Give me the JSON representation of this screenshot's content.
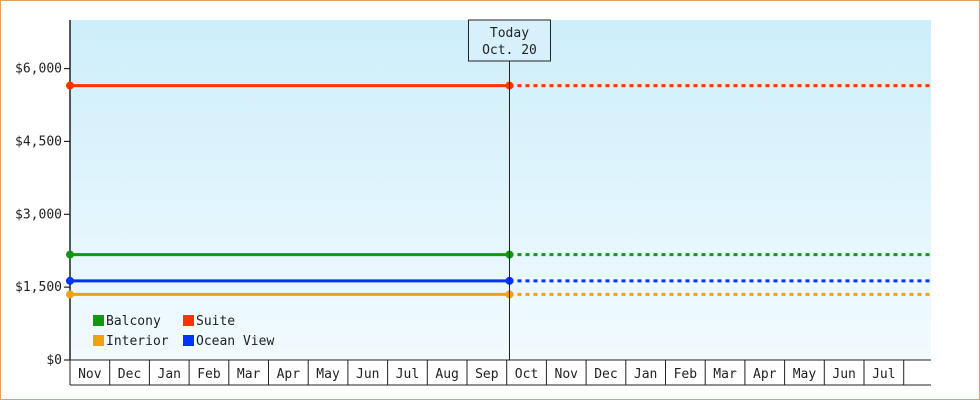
{
  "chart_data": {
    "type": "line",
    "ylim": [
      0,
      7000
    ],
    "y_ticks": [
      0,
      1500,
      3000,
      4500,
      6000
    ],
    "y_tick_labels": [
      "$0",
      "$1,500",
      "$3,000",
      "$4,500",
      "$6,000"
    ],
    "months": [
      "Nov",
      "Dec",
      "Jan",
      "Feb",
      "Mar",
      "Apr",
      "May",
      "Jun",
      "Jul",
      "Aug",
      "Sep",
      "Oct",
      "Nov",
      "Dec",
      "Jan",
      "Feb",
      "Mar",
      "Apr",
      "May",
      "Jun",
      "Jul"
    ],
    "today": {
      "title": "Today",
      "date": "Oct. 20",
      "month_index": 11
    },
    "series": [
      {
        "name": "Suite",
        "color": "#ff3300",
        "value": 5650
      },
      {
        "name": "Balcony",
        "color": "#109910",
        "value": 2170
      },
      {
        "name": "Ocean View",
        "color": "#0033ff",
        "value": 1630
      },
      {
        "name": "Interior",
        "color": "#f0a010",
        "value": 1350
      }
    ],
    "legend": {
      "placement": "bottom-left",
      "order": [
        "Balcony",
        "Suite",
        "Interior",
        "Ocean View"
      ]
    },
    "background": {
      "top": "#cdeefa",
      "bottom": "#f2fbfe"
    }
  }
}
